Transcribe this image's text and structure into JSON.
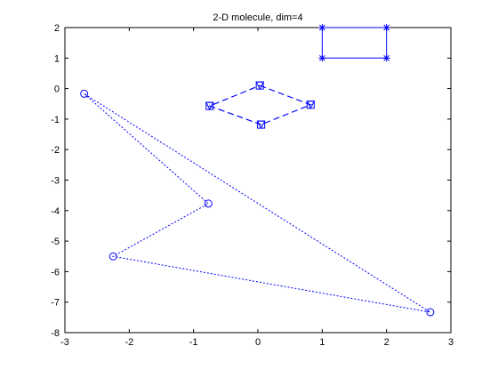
{
  "chart_data": {
    "type": "line",
    "title": "2-D molecule, dim=4",
    "xlabel": "",
    "ylabel": "",
    "xlim": [
      -3,
      3
    ],
    "ylim": [
      -8,
      2
    ],
    "xticks": [
      -3,
      -2,
      -1,
      0,
      1,
      2,
      3
    ],
    "yticks": [
      2,
      1,
      0,
      -1,
      -2,
      -3,
      -4,
      -5,
      -6,
      -7,
      -8
    ],
    "grid": false,
    "line_color": "#0000ff",
    "series": [
      {
        "marker": "star",
        "line_style": "solid",
        "points": [
          [
            1,
            2
          ],
          [
            2,
            2
          ],
          [
            2,
            1
          ],
          [
            1,
            1
          ],
          [
            1,
            2
          ]
        ]
      },
      {
        "marker": "square",
        "line_style": "dashed",
        "points": [
          [
            0.03,
            0.1
          ],
          [
            0.82,
            -0.53
          ],
          [
            0.05,
            -1.18
          ],
          [
            -0.75,
            -0.57
          ],
          [
            0.03,
            0.1
          ]
        ]
      },
      {
        "marker": "triangle-down",
        "line_style": "dashed",
        "points": [
          [
            0.03,
            0.1
          ],
          [
            0.82,
            -0.53
          ],
          [
            0.05,
            -1.18
          ],
          [
            -0.75,
            -0.57
          ],
          [
            0.03,
            0.1
          ]
        ]
      },
      {
        "marker": "circle",
        "line_style": "dotted",
        "points": [
          [
            -2.7,
            -0.17
          ],
          [
            -0.77,
            -3.77
          ],
          [
            -2.25,
            -5.5
          ],
          [
            2.68,
            -7.33
          ],
          [
            -2.7,
            -0.17
          ]
        ]
      }
    ]
  }
}
